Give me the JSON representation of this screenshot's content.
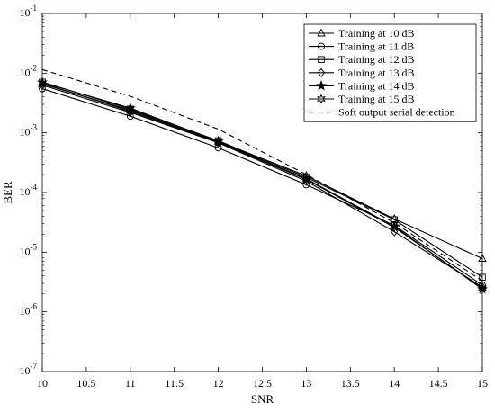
{
  "chart_data": {
    "type": "line",
    "title": "",
    "xlabel": "SNR",
    "ylabel": "BER",
    "x": [
      10,
      11,
      12,
      13,
      14,
      15
    ],
    "xlim": [
      10,
      15
    ],
    "ylim": [
      1e-07,
      0.1
    ],
    "yscale": "log",
    "grid": false,
    "legend_position": "top-right",
    "x_ticks": [
      "10",
      "10.5",
      "11",
      "11.5",
      "12",
      "12.5",
      "13",
      "13.5",
      "14",
      "14.5",
      "15"
    ],
    "y_ticks": [
      {
        "base": "10",
        "exp": "-7"
      },
      {
        "base": "10",
        "exp": "-6"
      },
      {
        "base": "10",
        "exp": "-5"
      },
      {
        "base": "10",
        "exp": "-4"
      },
      {
        "base": "10",
        "exp": "-3"
      },
      {
        "base": "10",
        "exp": "-2"
      },
      {
        "base": "10",
        "exp": "-1"
      }
    ],
    "series": [
      {
        "name": "Training at 10 dB",
        "marker": "triangle",
        "dash": "solid",
        "values": [
          0.0066,
          0.0024,
          0.00072,
          0.00019,
          3.6e-05,
          7.8e-06
        ]
      },
      {
        "name": "Training at 11 dB",
        "marker": "circle",
        "dash": "solid",
        "values": [
          0.0055,
          0.0019,
          0.00056,
          0.000135,
          2.8e-05,
          2.8e-06
        ]
      },
      {
        "name": "Training at 12 dB",
        "marker": "square",
        "dash": "solid",
        "values": [
          0.0071,
          0.0025,
          0.00074,
          0.00018,
          3.5e-05,
          3.8e-06
        ]
      },
      {
        "name": "Training at 13 dB",
        "marker": "diamond",
        "dash": "solid",
        "values": [
          0.0063,
          0.0022,
          0.00068,
          0.000155,
          2.2e-05,
          2.6e-06
        ]
      },
      {
        "name": "Training at 14 dB",
        "marker": "star",
        "dash": "solid",
        "values": [
          0.007,
          0.0026,
          0.00072,
          0.00017,
          2.7e-05,
          2.4e-06
        ]
      },
      {
        "name": "Training at 15 dB",
        "marker": "hexagram",
        "dash": "solid",
        "values": [
          0.0068,
          0.0023,
          0.0007,
          0.000165,
          2.6e-05,
          2.5e-06
        ]
      },
      {
        "name": "Soft output serial detection",
        "marker": "none",
        "dash": "dashed",
        "values": [
          0.0115,
          0.0041,
          0.00115,
          0.0002,
          3.1e-05,
          3.3e-06
        ]
      }
    ]
  }
}
